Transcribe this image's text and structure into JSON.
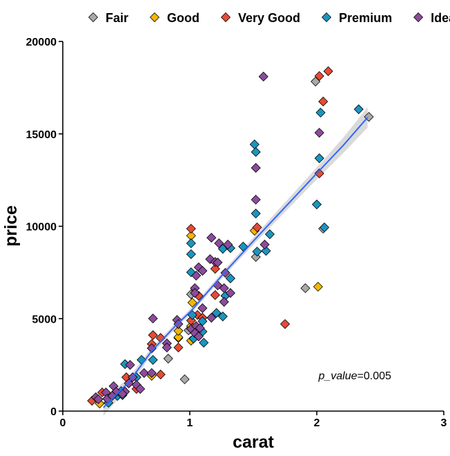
{
  "chart_data": {
    "type": "scatter",
    "xlabel": "carat",
    "ylabel": "price",
    "xlim": [
      0,
      3
    ],
    "ylim": [
      0,
      20000
    ],
    "x_ticks": [
      "0",
      "1",
      "2",
      "3"
    ],
    "y_ticks": [
      "0",
      "5000",
      "10000",
      "15000",
      "20000"
    ],
    "grid": false,
    "legend_position": "top",
    "annotation": {
      "label": "p_value",
      "text": "=0.005",
      "x": 2.3,
      "y": 1900
    },
    "colors": {
      "Fair": "#A9A9A9",
      "Good": "#F2B701",
      "Very Good": "#E64B35",
      "Premium": "#1B95C0",
      "Ideal": "#8B4C9C",
      "fit_line": "#3366FF",
      "band": "#D3D3D3"
    },
    "series": [
      {
        "name": "Fair",
        "points": [
          [
            1.99,
            17830
          ],
          [
            2.41,
            15920
          ],
          [
            2.05,
            9870
          ],
          [
            1.52,
            8340
          ],
          [
            1.01,
            6320
          ],
          [
            0.99,
            4370
          ],
          [
            1.91,
            6650
          ],
          [
            0.83,
            2840
          ],
          [
            0.96,
            1720
          ]
        ]
      },
      {
        "name": "Good",
        "points": [
          [
            1.51,
            9760
          ],
          [
            2.01,
            6730
          ],
          [
            1.01,
            9490
          ],
          [
            1.02,
            5870
          ],
          [
            1.01,
            3810
          ],
          [
            1.01,
            4600
          ],
          [
            0.91,
            3960
          ],
          [
            0.91,
            4000
          ],
          [
            0.7,
            1910
          ],
          [
            0.29,
            410
          ],
          [
            0.91,
            4340
          ]
        ]
      },
      {
        "name": "Very Good",
        "points": [
          [
            2.02,
            18130
          ],
          [
            2.09,
            18390
          ],
          [
            2.05,
            16750
          ],
          [
            2.02,
            12860
          ],
          [
            1.53,
            9940
          ],
          [
            1.75,
            4710
          ],
          [
            1.01,
            9870
          ],
          [
            1.2,
            7700
          ],
          [
            1.2,
            6280
          ],
          [
            1.07,
            6240
          ],
          [
            1.06,
            5200
          ],
          [
            1.1,
            5050
          ],
          [
            1.01,
            4900
          ],
          [
            0.71,
            4110
          ],
          [
            0.77,
            3960
          ],
          [
            0.7,
            3630
          ],
          [
            0.91,
            3440
          ],
          [
            0.77,
            1980
          ],
          [
            0.5,
            1830
          ],
          [
            0.58,
            1200
          ],
          [
            0.31,
            1010
          ],
          [
            0.23,
            560
          ]
        ]
      },
      {
        "name": "Premium",
        "points": [
          [
            2.03,
            16150
          ],
          [
            2.33,
            16330
          ],
          [
            2.02,
            13680
          ],
          [
            2.0,
            11180
          ],
          [
            2.06,
            9940
          ],
          [
            1.51,
            14430
          ],
          [
            1.52,
            14020
          ],
          [
            1.52,
            10690
          ],
          [
            1.63,
            9570
          ],
          [
            1.6,
            8670
          ],
          [
            1.53,
            8630
          ],
          [
            1.42,
            8900
          ],
          [
            1.26,
            8780
          ],
          [
            1.32,
            8820
          ],
          [
            1.01,
            9080
          ],
          [
            1.01,
            8490
          ],
          [
            1.01,
            7510
          ],
          [
            1.32,
            7180
          ],
          [
            1.28,
            6240
          ],
          [
            1.21,
            5310
          ],
          [
            1.26,
            5120
          ],
          [
            1.02,
            5200
          ],
          [
            1.1,
            4860
          ],
          [
            1.1,
            4300
          ],
          [
            1.03,
            3920
          ],
          [
            1.11,
            3700
          ],
          [
            0.71,
            2770
          ],
          [
            0.62,
            2770
          ],
          [
            0.49,
            2540
          ],
          [
            0.58,
            1830
          ],
          [
            0.46,
            1080
          ],
          [
            0.43,
            820
          ],
          [
            0.47,
            860
          ],
          [
            0.36,
            450
          ]
        ]
      },
      {
        "name": "Ideal",
        "points": [
          [
            1.58,
            18100
          ],
          [
            2.02,
            15060
          ],
          [
            1.52,
            13160
          ],
          [
            1.52,
            11440
          ],
          [
            1.59,
            9010
          ],
          [
            1.17,
            9380
          ],
          [
            1.23,
            9080
          ],
          [
            1.3,
            9010
          ],
          [
            1.16,
            8220
          ],
          [
            1.2,
            8070
          ],
          [
            1.22,
            8040
          ],
          [
            1.07,
            7780
          ],
          [
            1.1,
            7590
          ],
          [
            1.05,
            7330
          ],
          [
            1.28,
            7480
          ],
          [
            1.22,
            6800
          ],
          [
            1.27,
            6650
          ],
          [
            1.32,
            6390
          ],
          [
            1.27,
            5910
          ],
          [
            1.04,
            6650
          ],
          [
            1.04,
            6390
          ],
          [
            1.1,
            5570
          ],
          [
            1.17,
            5050
          ],
          [
            0.71,
            5010
          ],
          [
            0.9,
            4930
          ],
          [
            0.91,
            4710
          ],
          [
            1.01,
            4450
          ],
          [
            1.05,
            4600
          ],
          [
            1.08,
            4490
          ],
          [
            1.04,
            4220
          ],
          [
            1.07,
            4040
          ],
          [
            0.82,
            3660
          ],
          [
            0.82,
            3440
          ],
          [
            0.7,
            3400
          ],
          [
            0.53,
            2500
          ],
          [
            0.64,
            2060
          ],
          [
            0.7,
            2060
          ],
          [
            0.55,
            1830
          ],
          [
            0.52,
            1500
          ],
          [
            0.58,
            1420
          ],
          [
            0.61,
            1200
          ],
          [
            0.4,
            1350
          ],
          [
            0.49,
            1050
          ],
          [
            0.42,
            1050
          ],
          [
            0.34,
            1010
          ],
          [
            0.26,
            750
          ],
          [
            0.35,
            670
          ],
          [
            0.39,
            820
          ],
          [
            0.47,
            930
          ],
          [
            0.28,
            640
          ]
        ]
      }
    ],
    "fit": {
      "method": "smooth",
      "points": [
        [
          0.32,
          190
        ],
        [
          0.52,
          1570
        ],
        [
          0.7,
          3250
        ],
        [
          0.88,
          4560
        ],
        [
          1.01,
          5420
        ],
        [
          1.28,
          7550
        ],
        [
          1.53,
          9420
        ],
        [
          2.02,
          13010
        ],
        [
          2.21,
          14390
        ],
        [
          2.4,
          15890
        ]
      ],
      "se": [
        450,
        250,
        180,
        150,
        150,
        160,
        200,
        330,
        420,
        550
      ]
    }
  }
}
